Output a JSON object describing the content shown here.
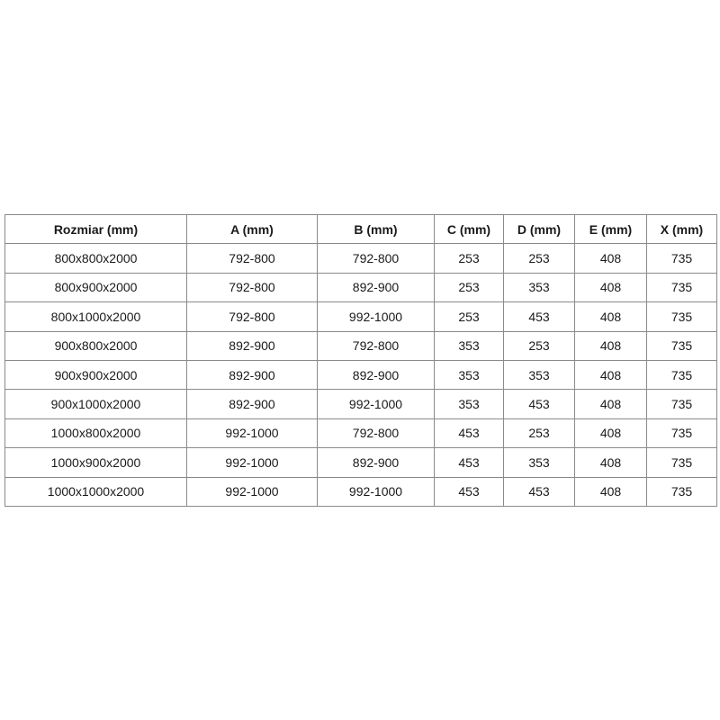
{
  "table": {
    "headers": [
      "Rozmiar (mm)",
      "A (mm)",
      "B (mm)",
      "C (mm)",
      "D (mm)",
      "E (mm)",
      "X (mm)"
    ],
    "rows": [
      [
        "800x800x2000",
        "792-800",
        "792-800",
        "253",
        "253",
        "408",
        "735"
      ],
      [
        "800x900x2000",
        "792-800",
        "892-900",
        "253",
        "353",
        "408",
        "735"
      ],
      [
        "800x1000x2000",
        "792-800",
        "992-1000",
        "253",
        "453",
        "408",
        "735"
      ],
      [
        "900x800x2000",
        "892-900",
        "792-800",
        "353",
        "253",
        "408",
        "735"
      ],
      [
        "900x900x2000",
        "892-900",
        "892-900",
        "353",
        "353",
        "408",
        "735"
      ],
      [
        "900x1000x2000",
        "892-900",
        "992-1000",
        "353",
        "453",
        "408",
        "735"
      ],
      [
        "1000x800x2000",
        "992-1000",
        "792-800",
        "453",
        "253",
        "408",
        "735"
      ],
      [
        "1000x900x2000",
        "992-1000",
        "892-900",
        "453",
        "353",
        "408",
        "735"
      ],
      [
        "1000x1000x2000",
        "992-1000",
        "992-1000",
        "453",
        "453",
        "408",
        "735"
      ]
    ]
  }
}
